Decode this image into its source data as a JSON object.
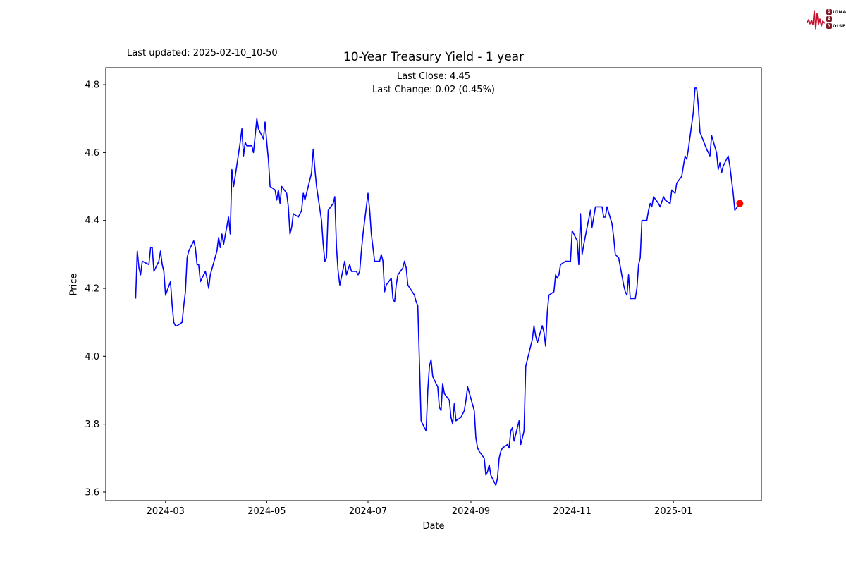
{
  "header": {
    "last_updated": "Last updated: 2025-02-10_10-50"
  },
  "logo": {
    "red": "#c8102e",
    "box_color": "#7d1c28",
    "rows": [
      {
        "box": "S",
        "rest": "IGNAL"
      },
      {
        "box": "2",
        "rest": ""
      },
      {
        "box": "N",
        "rest": "OISE"
      }
    ]
  },
  "chart_data": {
    "type": "line",
    "title": "10-Year Treasury Yield - 1 year",
    "subtitle_line1": "Last Close: 4.45",
    "subtitle_line2": "Last Change: 0.02 (0.45%)",
    "xlabel": "Date",
    "ylabel": "Price",
    "last_close": 4.45,
    "last_change": 0.02,
    "last_change_pct": "0.45%",
    "grid": false,
    "line_color": "#0000ff",
    "marker_color": "#ff0000",
    "axis_color": "#000000",
    "xlim": [
      "2024-01-25",
      "2025-02-23"
    ],
    "ylim": [
      3.575,
      4.85
    ],
    "y_ticks": [
      3.6,
      3.8,
      4.0,
      4.2,
      4.4,
      4.6,
      4.8
    ],
    "x_ticks": [
      {
        "date": "2024-03-01",
        "label": "2024-03"
      },
      {
        "date": "2024-05-01",
        "label": "2024-05"
      },
      {
        "date": "2024-07-01",
        "label": "2024-07"
      },
      {
        "date": "2024-09-01",
        "label": "2024-09"
      },
      {
        "date": "2024-11-01",
        "label": "2024-11"
      },
      {
        "date": "2025-01-01",
        "label": "2025-01"
      }
    ],
    "marker": {
      "date": "2025-02-10",
      "value": 4.45
    },
    "series": [
      {
        "name": "10-Year Treasury Yield",
        "points": [
          [
            "2024-02-12",
            4.17
          ],
          [
            "2024-02-13",
            4.31
          ],
          [
            "2024-02-14",
            4.26
          ],
          [
            "2024-02-15",
            4.24
          ],
          [
            "2024-02-16",
            4.28
          ],
          [
            "2024-02-20",
            4.27
          ],
          [
            "2024-02-21",
            4.32
          ],
          [
            "2024-02-22",
            4.32
          ],
          [
            "2024-02-23",
            4.25
          ],
          [
            "2024-02-26",
            4.28
          ],
          [
            "2024-02-27",
            4.31
          ],
          [
            "2024-02-28",
            4.27
          ],
          [
            "2024-02-29",
            4.25
          ],
          [
            "2024-03-01",
            4.18
          ],
          [
            "2024-03-04",
            4.22
          ],
          [
            "2024-03-05",
            4.15
          ],
          [
            "2024-03-06",
            4.1
          ],
          [
            "2024-03-07",
            4.09
          ],
          [
            "2024-03-08",
            4.09
          ],
          [
            "2024-03-11",
            4.1
          ],
          [
            "2024-03-12",
            4.15
          ],
          [
            "2024-03-13",
            4.19
          ],
          [
            "2024-03-14",
            4.29
          ],
          [
            "2024-03-15",
            4.31
          ],
          [
            "2024-03-18",
            4.34
          ],
          [
            "2024-03-19",
            4.32
          ],
          [
            "2024-03-20",
            4.27
          ],
          [
            "2024-03-21",
            4.27
          ],
          [
            "2024-03-22",
            4.22
          ],
          [
            "2024-03-25",
            4.25
          ],
          [
            "2024-03-26",
            4.23
          ],
          [
            "2024-03-27",
            4.2
          ],
          [
            "2024-03-28",
            4.24
          ],
          [
            "2024-04-01",
            4.31
          ],
          [
            "2024-04-02",
            4.35
          ],
          [
            "2024-04-03",
            4.32
          ],
          [
            "2024-04-04",
            4.36
          ],
          [
            "2024-04-05",
            4.33
          ],
          [
            "2024-04-08",
            4.41
          ],
          [
            "2024-04-09",
            4.36
          ],
          [
            "2024-04-10",
            4.55
          ],
          [
            "2024-04-11",
            4.5
          ],
          [
            "2024-04-12",
            4.53
          ],
          [
            "2024-04-15",
            4.63
          ],
          [
            "2024-04-16",
            4.67
          ],
          [
            "2024-04-17",
            4.59
          ],
          [
            "2024-04-18",
            4.63
          ],
          [
            "2024-04-19",
            4.62
          ],
          [
            "2024-04-22",
            4.62
          ],
          [
            "2024-04-23",
            4.6
          ],
          [
            "2024-04-24",
            4.65
          ],
          [
            "2024-04-25",
            4.7
          ],
          [
            "2024-04-26",
            4.67
          ],
          [
            "2024-04-29",
            4.64
          ],
          [
            "2024-04-30",
            4.69
          ],
          [
            "2024-05-01",
            4.63
          ],
          [
            "2024-05-02",
            4.58
          ],
          [
            "2024-05-03",
            4.5
          ],
          [
            "2024-05-06",
            4.49
          ],
          [
            "2024-05-07",
            4.46
          ],
          [
            "2024-05-08",
            4.49
          ],
          [
            "2024-05-09",
            4.45
          ],
          [
            "2024-05-10",
            4.5
          ],
          [
            "2024-05-13",
            4.48
          ],
          [
            "2024-05-14",
            4.44
          ],
          [
            "2024-05-15",
            4.36
          ],
          [
            "2024-05-16",
            4.38
          ],
          [
            "2024-05-17",
            4.42
          ],
          [
            "2024-05-20",
            4.41
          ],
          [
            "2024-05-21",
            4.42
          ],
          [
            "2024-05-22",
            4.43
          ],
          [
            "2024-05-23",
            4.48
          ],
          [
            "2024-05-24",
            4.46
          ],
          [
            "2024-05-28",
            4.54
          ],
          [
            "2024-05-29",
            4.61
          ],
          [
            "2024-05-30",
            4.55
          ],
          [
            "2024-05-31",
            4.5
          ],
          [
            "2024-06-03",
            4.4
          ],
          [
            "2024-06-04",
            4.33
          ],
          [
            "2024-06-05",
            4.28
          ],
          [
            "2024-06-06",
            4.29
          ],
          [
            "2024-06-07",
            4.43
          ],
          [
            "2024-06-10",
            4.45
          ],
          [
            "2024-06-11",
            4.47
          ],
          [
            "2024-06-12",
            4.32
          ],
          [
            "2024-06-13",
            4.25
          ],
          [
            "2024-06-14",
            4.21
          ],
          [
            "2024-06-17",
            4.28
          ],
          [
            "2024-06-18",
            4.24
          ],
          [
            "2024-06-20",
            4.27
          ],
          [
            "2024-06-21",
            4.25
          ],
          [
            "2024-06-24",
            4.25
          ],
          [
            "2024-06-25",
            4.24
          ],
          [
            "2024-06-26",
            4.25
          ],
          [
            "2024-06-27",
            4.31
          ],
          [
            "2024-06-28",
            4.36
          ],
          [
            "2024-07-01",
            4.48
          ],
          [
            "2024-07-02",
            4.43
          ],
          [
            "2024-07-03",
            4.36
          ],
          [
            "2024-07-05",
            4.28
          ],
          [
            "2024-07-08",
            4.28
          ],
          [
            "2024-07-09",
            4.3
          ],
          [
            "2024-07-10",
            4.28
          ],
          [
            "2024-07-11",
            4.19
          ],
          [
            "2024-07-12",
            4.21
          ],
          [
            "2024-07-15",
            4.23
          ],
          [
            "2024-07-16",
            4.17
          ],
          [
            "2024-07-17",
            4.16
          ],
          [
            "2024-07-18",
            4.21
          ],
          [
            "2024-07-19",
            4.24
          ],
          [
            "2024-07-22",
            4.26
          ],
          [
            "2024-07-23",
            4.28
          ],
          [
            "2024-07-24",
            4.26
          ],
          [
            "2024-07-25",
            4.21
          ],
          [
            "2024-07-29",
            4.18
          ],
          [
            "2024-07-30",
            4.16
          ],
          [
            "2024-07-31",
            4.15
          ],
          [
            "2024-08-01",
            3.98
          ],
          [
            "2024-08-02",
            3.81
          ],
          [
            "2024-08-05",
            3.78
          ],
          [
            "2024-08-06",
            3.9
          ],
          [
            "2024-08-07",
            3.97
          ],
          [
            "2024-08-08",
            3.99
          ],
          [
            "2024-08-09",
            3.94
          ],
          [
            "2024-08-12",
            3.91
          ],
          [
            "2024-08-13",
            3.85
          ],
          [
            "2024-08-14",
            3.84
          ],
          [
            "2024-08-15",
            3.92
          ],
          [
            "2024-08-16",
            3.89
          ],
          [
            "2024-08-19",
            3.87
          ],
          [
            "2024-08-20",
            3.82
          ],
          [
            "2024-08-21",
            3.8
          ],
          [
            "2024-08-22",
            3.86
          ],
          [
            "2024-08-23",
            3.81
          ],
          [
            "2024-08-26",
            3.82
          ],
          [
            "2024-08-27",
            3.83
          ],
          [
            "2024-08-28",
            3.84
          ],
          [
            "2024-08-29",
            3.87
          ],
          [
            "2024-08-30",
            3.91
          ],
          [
            "2024-09-03",
            3.84
          ],
          [
            "2024-09-04",
            3.76
          ],
          [
            "2024-09-05",
            3.73
          ],
          [
            "2024-09-06",
            3.72
          ],
          [
            "2024-09-09",
            3.7
          ],
          [
            "2024-09-10",
            3.65
          ],
          [
            "2024-09-11",
            3.66
          ],
          [
            "2024-09-12",
            3.68
          ],
          [
            "2024-09-13",
            3.65
          ],
          [
            "2024-09-16",
            3.62
          ],
          [
            "2024-09-17",
            3.64
          ],
          [
            "2024-09-18",
            3.7
          ],
          [
            "2024-09-19",
            3.72
          ],
          [
            "2024-09-20",
            3.73
          ],
          [
            "2024-09-23",
            3.74
          ],
          [
            "2024-09-24",
            3.73
          ],
          [
            "2024-09-25",
            3.78
          ],
          [
            "2024-09-26",
            3.79
          ],
          [
            "2024-09-27",
            3.75
          ],
          [
            "2024-09-30",
            3.81
          ],
          [
            "2024-10-01",
            3.74
          ],
          [
            "2024-10-02",
            3.76
          ],
          [
            "2024-10-03",
            3.78
          ],
          [
            "2024-10-04",
            3.97
          ],
          [
            "2024-10-07",
            4.03
          ],
          [
            "2024-10-08",
            4.05
          ],
          [
            "2024-10-09",
            4.09
          ],
          [
            "2024-10-10",
            4.06
          ],
          [
            "2024-10-11",
            4.04
          ],
          [
            "2024-10-14",
            4.09
          ],
          [
            "2024-10-15",
            4.07
          ],
          [
            "2024-10-16",
            4.03
          ],
          [
            "2024-10-17",
            4.13
          ],
          [
            "2024-10-18",
            4.18
          ],
          [
            "2024-10-21",
            4.19
          ],
          [
            "2024-10-22",
            4.24
          ],
          [
            "2024-10-23",
            4.23
          ],
          [
            "2024-10-24",
            4.24
          ],
          [
            "2024-10-25",
            4.27
          ],
          [
            "2024-10-28",
            4.28
          ],
          [
            "2024-10-29",
            4.28
          ],
          [
            "2024-10-30",
            4.28
          ],
          [
            "2024-10-31",
            4.28
          ],
          [
            "2024-11-01",
            4.37
          ],
          [
            "2024-11-04",
            4.34
          ],
          [
            "2024-11-05",
            4.27
          ],
          [
            "2024-11-06",
            4.42
          ],
          [
            "2024-11-07",
            4.3
          ],
          [
            "2024-11-08",
            4.33
          ],
          [
            "2024-11-12",
            4.43
          ],
          [
            "2024-11-13",
            4.38
          ],
          [
            "2024-11-14",
            4.41
          ],
          [
            "2024-11-15",
            4.44
          ],
          [
            "2024-11-18",
            4.44
          ],
          [
            "2024-11-19",
            4.44
          ],
          [
            "2024-11-20",
            4.41
          ],
          [
            "2024-11-21",
            4.41
          ],
          [
            "2024-11-22",
            4.44
          ],
          [
            "2024-11-25",
            4.39
          ],
          [
            "2024-11-26",
            4.35
          ],
          [
            "2024-11-27",
            4.3
          ],
          [
            "2024-11-29",
            4.29
          ],
          [
            "2024-12-02",
            4.21
          ],
          [
            "2024-12-03",
            4.19
          ],
          [
            "2024-12-04",
            4.18
          ],
          [
            "2024-12-05",
            4.24
          ],
          [
            "2024-12-06",
            4.17
          ],
          [
            "2024-12-09",
            4.17
          ],
          [
            "2024-12-10",
            4.2
          ],
          [
            "2024-12-11",
            4.27
          ],
          [
            "2024-12-12",
            4.29
          ],
          [
            "2024-12-13",
            4.4
          ],
          [
            "2024-12-16",
            4.4
          ],
          [
            "2024-12-17",
            4.43
          ],
          [
            "2024-12-18",
            4.45
          ],
          [
            "2024-12-19",
            4.44
          ],
          [
            "2024-12-20",
            4.47
          ],
          [
            "2024-12-23",
            4.45
          ],
          [
            "2024-12-24",
            4.44
          ],
          [
            "2024-12-26",
            4.47
          ],
          [
            "2024-12-27",
            4.46
          ],
          [
            "2024-12-30",
            4.45
          ],
          [
            "2024-12-31",
            4.49
          ],
          [
            "2025-01-02",
            4.48
          ],
          [
            "2025-01-03",
            4.51
          ],
          [
            "2025-01-06",
            4.53
          ],
          [
            "2025-01-07",
            4.56
          ],
          [
            "2025-01-08",
            4.59
          ],
          [
            "2025-01-09",
            4.58
          ],
          [
            "2025-01-10",
            4.61
          ],
          [
            "2025-01-13",
            4.72
          ],
          [
            "2025-01-14",
            4.79
          ],
          [
            "2025-01-15",
            4.79
          ],
          [
            "2025-01-16",
            4.74
          ],
          [
            "2025-01-17",
            4.66
          ],
          [
            "2025-01-21",
            4.61
          ],
          [
            "2025-01-22",
            4.6
          ],
          [
            "2025-01-23",
            4.59
          ],
          [
            "2025-01-24",
            4.65
          ],
          [
            "2025-01-27",
            4.6
          ],
          [
            "2025-01-28",
            4.55
          ],
          [
            "2025-01-29",
            4.57
          ],
          [
            "2025-01-30",
            4.54
          ],
          [
            "2025-01-31",
            4.56
          ],
          [
            "2025-02-03",
            4.59
          ],
          [
            "2025-02-04",
            4.56
          ],
          [
            "2025-02-05",
            4.52
          ],
          [
            "2025-02-06",
            4.48
          ],
          [
            "2025-02-07",
            4.43
          ],
          [
            "2025-02-10",
            4.45
          ]
        ]
      }
    ]
  }
}
